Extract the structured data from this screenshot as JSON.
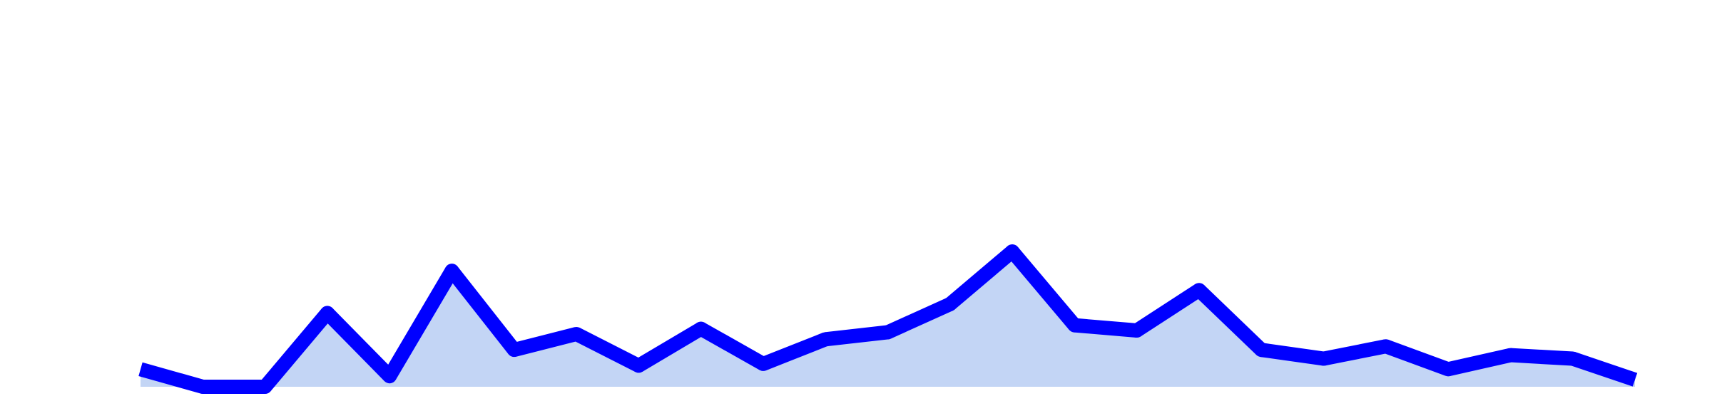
{
  "chart_data": {
    "type": "area",
    "title": "",
    "xlabel": "",
    "ylabel": "",
    "grid": false,
    "legend": "none",
    "x": [
      0,
      1,
      2,
      3,
      4,
      5,
      6,
      7,
      8,
      9,
      10,
      11,
      12,
      13,
      14,
      15,
      16,
      17,
      18,
      19,
      20,
      21,
      22,
      23,
      24
    ],
    "series": [
      {
        "values": [
          1.0,
          0.0,
          0.0,
          4.2,
          0.6,
          6.6,
          2.1,
          3.0,
          1.2,
          3.3,
          1.3,
          2.7,
          3.1,
          4.7,
          7.7,
          3.5,
          3.2,
          5.5,
          2.1,
          1.6,
          2.3,
          1.0,
          1.8,
          1.6,
          0.4
        ],
        "line_color": "#0000ff",
        "fill_color": "#c3d5f5"
      }
    ],
    "ylim": [
      0,
      22
    ],
    "xlim": [
      0,
      24
    ]
  }
}
